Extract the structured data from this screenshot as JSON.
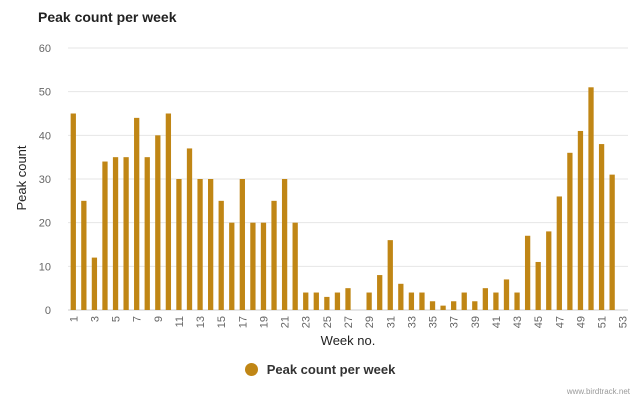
{
  "colors": {
    "bar": "#c08615",
    "grid": "#e6e6e6",
    "axis_text": "#666666",
    "label_text": "#222222"
  },
  "chart_data": {
    "type": "bar",
    "title": "Peak count per week",
    "xlabel": "Week no.",
    "ylabel": "Peak count",
    "ylim": [
      0,
      60
    ],
    "yticks": [
      0,
      10,
      20,
      30,
      40,
      50,
      60
    ],
    "xticks": [
      "1",
      "3",
      "5",
      "7",
      "9",
      "11",
      "13",
      "15",
      "17",
      "19",
      "21",
      "23",
      "25",
      "27",
      "29",
      "31",
      "33",
      "35",
      "37",
      "39",
      "41",
      "43",
      "45",
      "47",
      "49",
      "51",
      "53"
    ],
    "categories": [
      1,
      2,
      3,
      4,
      5,
      6,
      7,
      8,
      9,
      10,
      11,
      12,
      13,
      14,
      15,
      16,
      17,
      18,
      19,
      20,
      21,
      22,
      23,
      24,
      25,
      26,
      27,
      28,
      29,
      30,
      31,
      32,
      33,
      34,
      35,
      36,
      37,
      38,
      39,
      40,
      41,
      42,
      43,
      44,
      45,
      46,
      47,
      48,
      49,
      50,
      51,
      52,
      53
    ],
    "series": [
      {
        "name": "Peak count per week",
        "values": [
          45,
          25,
          12,
          34,
          35,
          35,
          44,
          35,
          40,
          45,
          30,
          37,
          30,
          30,
          25,
          20,
          30,
          20,
          20,
          25,
          30,
          20,
          4,
          4,
          3,
          4,
          5,
          0,
          4,
          8,
          16,
          6,
          4,
          4,
          2,
          1,
          2,
          4,
          2,
          5,
          4,
          7,
          4,
          17,
          11,
          18,
          26,
          36,
          41,
          51,
          38,
          31,
          0
        ]
      }
    ],
    "legend_position": "bottom-center",
    "grid": true
  },
  "footer": {
    "credit": "www.birdtrack.net"
  }
}
